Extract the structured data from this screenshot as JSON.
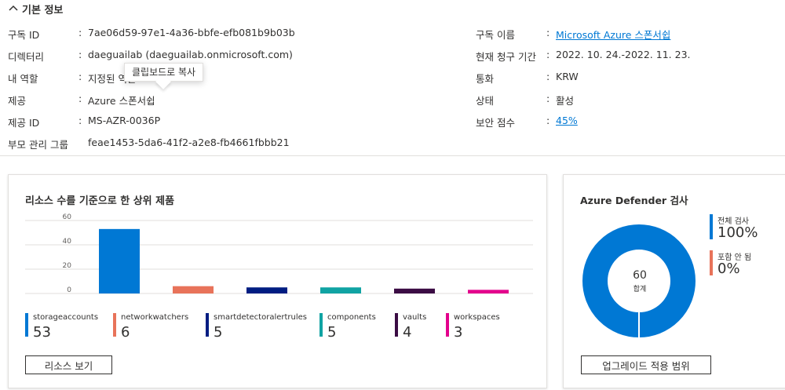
{
  "section": {
    "title": "기본 정보"
  },
  "props_left": [
    {
      "label": "구독 ID",
      "value": "7ae06d59-97e1-4a36-bbfe-efb081b9b03b",
      "link": false
    },
    {
      "label": "디렉터리",
      "value": "daeguailab (daeguailab.onmicrosoft.com)",
      "link": false
    },
    {
      "label": "내 역할",
      "value": "지정된 역할",
      "link": false
    },
    {
      "label": "제공",
      "value": "Azure 스폰서쉽",
      "link": false
    },
    {
      "label": "제공 ID",
      "value": "MS-AZR-0036P",
      "link": false
    },
    {
      "label": "부모 관리 그룹",
      "value": "feae1453-5da6-41f2-a2e8-fb4661fbbb21",
      "link": false
    }
  ],
  "props_right": [
    {
      "label": "구독 이름",
      "value": "Microsoft Azure 스폰서쉽",
      "link": true
    },
    {
      "label": "현재 청구 기간",
      "value": "2022. 10. 24.-2022. 11. 23.",
      "link": false
    },
    {
      "label": "통화",
      "value": "KRW",
      "link": false
    },
    {
      "label": "상태",
      "value": "활성",
      "link": false
    },
    {
      "label": "보안 점수",
      "value": "45%",
      "link": true
    }
  ],
  "tooltip": {
    "text": "클립보드로 복사"
  },
  "resources_card": {
    "title": "리소스 수를 기준으로 한 상위 제품",
    "button_label": "리소스 보기"
  },
  "chart_data": {
    "type": "bar",
    "categories": [
      "storageaccounts",
      "networkwatchers",
      "smartdetectoralertrules",
      "components",
      "vaults",
      "workspaces"
    ],
    "values": [
      53,
      6,
      5,
      5,
      4,
      3
    ],
    "colors": [
      "#0078d4",
      "#e8735a",
      "#001d82",
      "#10a3a3",
      "#3b0c44",
      "#e3008c"
    ],
    "yticks": [
      0,
      20,
      40,
      60
    ],
    "ylim": [
      0,
      60
    ],
    "grid": true,
    "title": "리소스 수를 기준으로 한 상위 제품"
  },
  "defender_card": {
    "title": "Azure Defender 검사",
    "center_value": "60",
    "center_label": "합계",
    "legend": [
      {
        "name": "전체 검사",
        "value": "100%",
        "color": "#0078d4"
      },
      {
        "name": "포함 안 됨",
        "value": "0%",
        "color": "#e8735a"
      }
    ],
    "covered_fraction": 1.0,
    "button_label": "업그레이드 적용 범위"
  }
}
